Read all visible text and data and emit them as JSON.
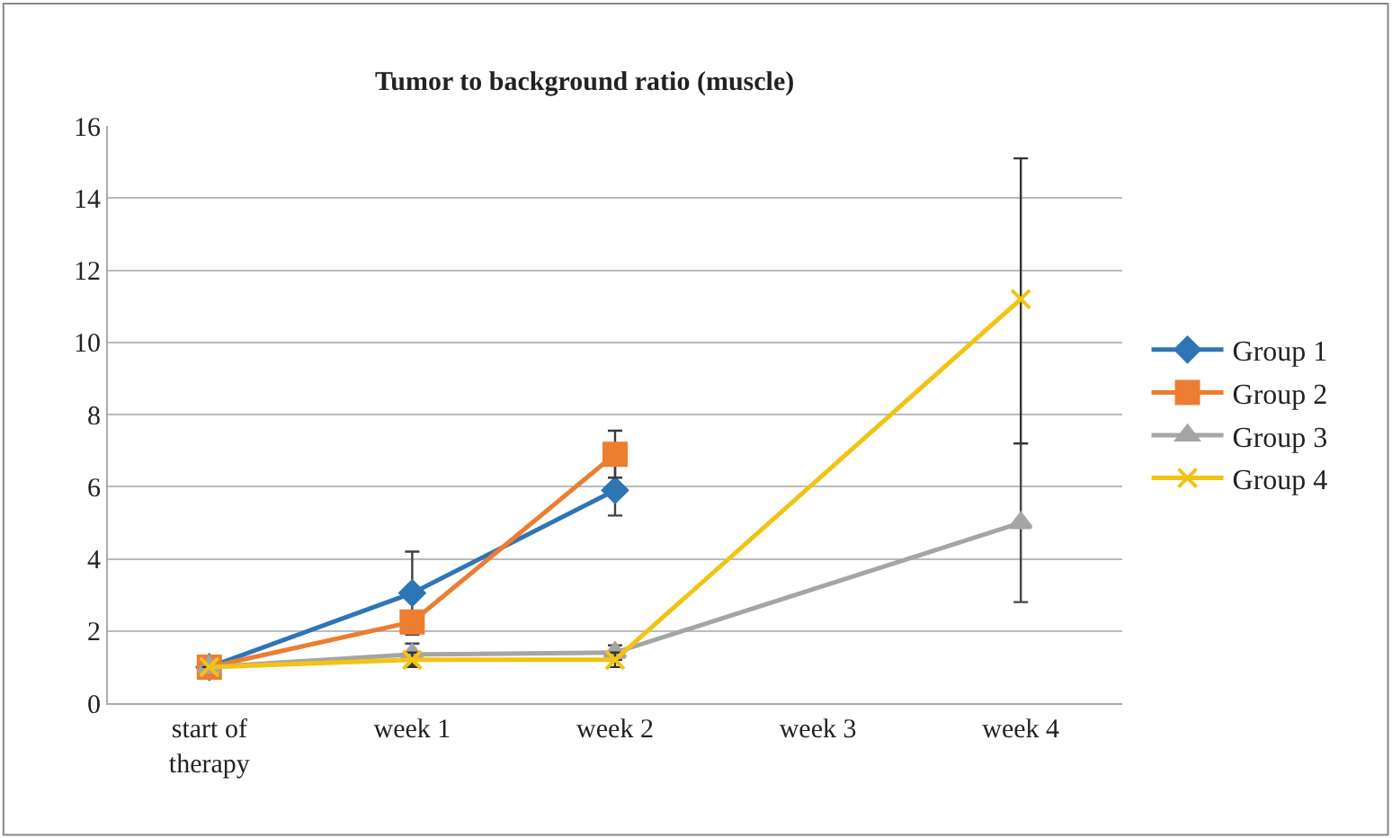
{
  "chart_data": {
    "type": "line",
    "title": "Tumor to background ratio (muscle)",
    "categories": [
      "start of therapy",
      "week 1",
      "week 2",
      "week 3",
      "week 4"
    ],
    "series": [
      {
        "name": "Group 1",
        "color": "#2e75b6",
        "marker": "diamond",
        "values": [
          1,
          3.05,
          5.9,
          null,
          null
        ],
        "errors": [
          null,
          1.15,
          0.7,
          null,
          null
        ]
      },
      {
        "name": "Group 2",
        "color": "#ed7d31",
        "marker": "square",
        "values": [
          1,
          2.25,
          6.9,
          null,
          null
        ],
        "errors": [
          null,
          null,
          0.65,
          null,
          null
        ]
      },
      {
        "name": "Group 3",
        "color": "#a5a5a5",
        "marker": "triangle",
        "values": [
          1,
          1.35,
          1.4,
          null,
          5.0
        ],
        "errors": [
          null,
          0.3,
          0.2,
          null,
          [
            2.8,
            7.2
          ]
        ]
      },
      {
        "name": "Group 4",
        "color": "#f2c314",
        "marker": "cross",
        "values": [
          1,
          1.2,
          1.2,
          null,
          11.2
        ],
        "errors": [
          null,
          0.2,
          0.2,
          null,
          [
            7.2,
            15.1
          ]
        ]
      }
    ],
    "ylim": [
      0,
      16
    ],
    "yticks": [
      0,
      2,
      4,
      6,
      8,
      10,
      12,
      14,
      16
    ],
    "grid": "y",
    "legend": "right",
    "line_style": "solid"
  }
}
